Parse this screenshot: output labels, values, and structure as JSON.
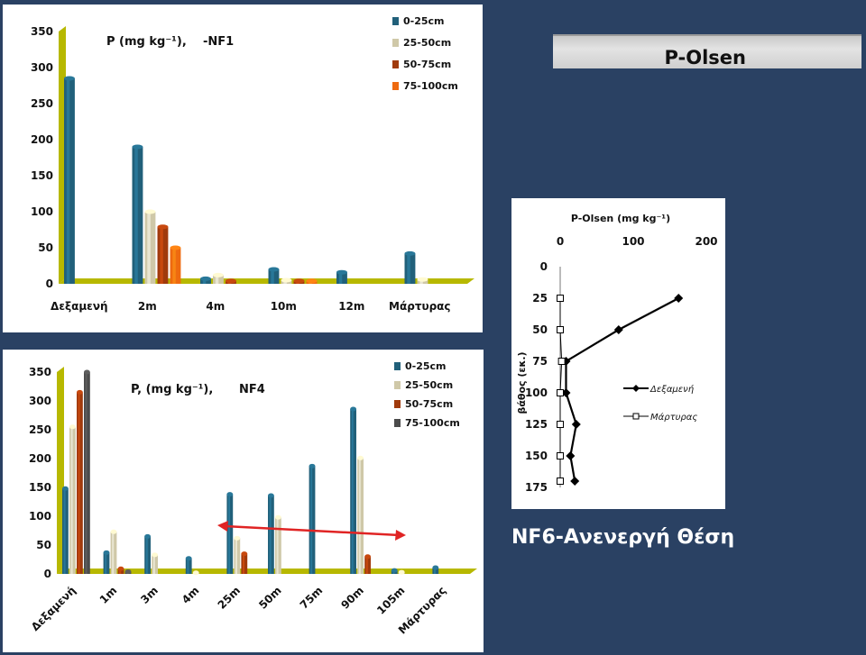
{
  "banner": {
    "title": "P-Olsen"
  },
  "caption": "NF6-Ανενεργή Θέση",
  "colors": {
    "background": "#2a4163",
    "s1": "#21607a",
    "s2": "#cfc8a8",
    "s3": "#a03a0c",
    "s4": "#ee6a10",
    "s4_nf4": "#4b4b4b",
    "wall": "#b7b800",
    "arrow": "#e02424"
  },
  "chart_data": [
    {
      "type": "bar",
      "title": "P (mg kg⁻¹),",
      "site": "-NF1",
      "categories": [
        "Δεξαμενή",
        "2m",
        "4m",
        "10m",
        "12m",
        "Μάρτυρας"
      ],
      "series": [
        {
          "name": "0-25cm",
          "values": [
            285,
            190,
            7,
            20,
            16,
            42
          ]
        },
        {
          "name": "25-50cm",
          "values": [
            null,
            100,
            12,
            5,
            null,
            6
          ]
        },
        {
          "name": "50-75cm",
          "values": [
            null,
            79,
            4,
            4,
            null,
            null
          ]
        },
        {
          "name": "75-100cm",
          "values": [
            null,
            50,
            null,
            4,
            null,
            null
          ]
        }
      ],
      "ylim": [
        0,
        350
      ],
      "yticks": [
        0,
        50,
        100,
        150,
        200,
        250,
        300,
        350
      ],
      "legend": "top-right"
    },
    {
      "type": "bar",
      "title": "P, (mg kg⁻¹),",
      "site": "NF4",
      "categories": [
        "Δεξαμενή",
        "1m",
        "3m",
        "4m",
        "25m",
        "50m",
        "75m",
        "90m",
        "105m",
        "Μάρτυρας"
      ],
      "series": [
        {
          "name": "0-25cm",
          "values": [
            148,
            37,
            65,
            27,
            138,
            136,
            187,
            286,
            6,
            11
          ]
        },
        {
          "name": "25-50cm",
          "values": [
            255,
            73,
            33,
            2,
            62,
            98,
            null,
            201,
            3,
            null
          ]
        },
        {
          "name": "50-75cm",
          "values": [
            315,
            9,
            null,
            null,
            35,
            null,
            null,
            30,
            null,
            null
          ]
        },
        {
          "name": "75-100cm",
          "values": [
            350,
            4,
            null,
            null,
            null,
            null,
            null,
            null,
            null,
            null
          ]
        }
      ],
      "ylim": [
        0,
        350
      ],
      "yticks": [
        0,
        50,
        100,
        150,
        200,
        250,
        300,
        350
      ],
      "legend": "top-right"
    },
    {
      "type": "line",
      "title": "P-Olsen (mg kg⁻¹)",
      "ylabel": "βάθος (εκ.)",
      "xlim": [
        0,
        200
      ],
      "xticks": [
        0,
        100,
        200
      ],
      "ylim": [
        0,
        175
      ],
      "yticks": [
        0,
        25,
        50,
        75,
        100,
        125,
        150,
        175
      ],
      "y_reversed": true,
      "x_axis": "top",
      "legend": "right",
      "series": [
        {
          "name": "Δεξαμενή",
          "marker": "diamond",
          "points": [
            [
              162,
              25
            ],
            [
              80,
              50
            ],
            [
              8,
              75
            ],
            [
              8,
              100
            ],
            [
              22,
              125
            ],
            [
              14,
              150
            ],
            [
              20,
              170
            ]
          ]
        },
        {
          "name": "Μάρτυρας",
          "marker": "square",
          "points": [
            [
              0,
              25
            ],
            [
              0,
              50
            ],
            [
              2,
              75
            ],
            [
              0,
              100
            ],
            [
              0,
              125
            ],
            [
              0,
              150
            ],
            [
              0,
              170
            ]
          ]
        }
      ]
    }
  ]
}
